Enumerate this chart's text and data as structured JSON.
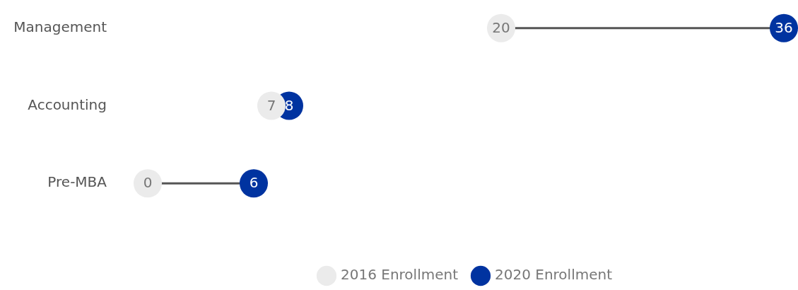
{
  "chart_data": {
    "type": "scatter",
    "orientation": "horizontal",
    "categories": [
      "Management",
      "Accounting",
      "Pre-MBA"
    ],
    "series": [
      {
        "name": "2016 Enrollment",
        "color": "#ebebeb",
        "values": [
          20,
          7,
          0
        ]
      },
      {
        "name": "2020 Enrollment",
        "color": "#0033a0",
        "values": [
          36,
          8,
          6
        ]
      }
    ],
    "marker": "circle",
    "data_labels": true,
    "legend": "bottom"
  }
}
